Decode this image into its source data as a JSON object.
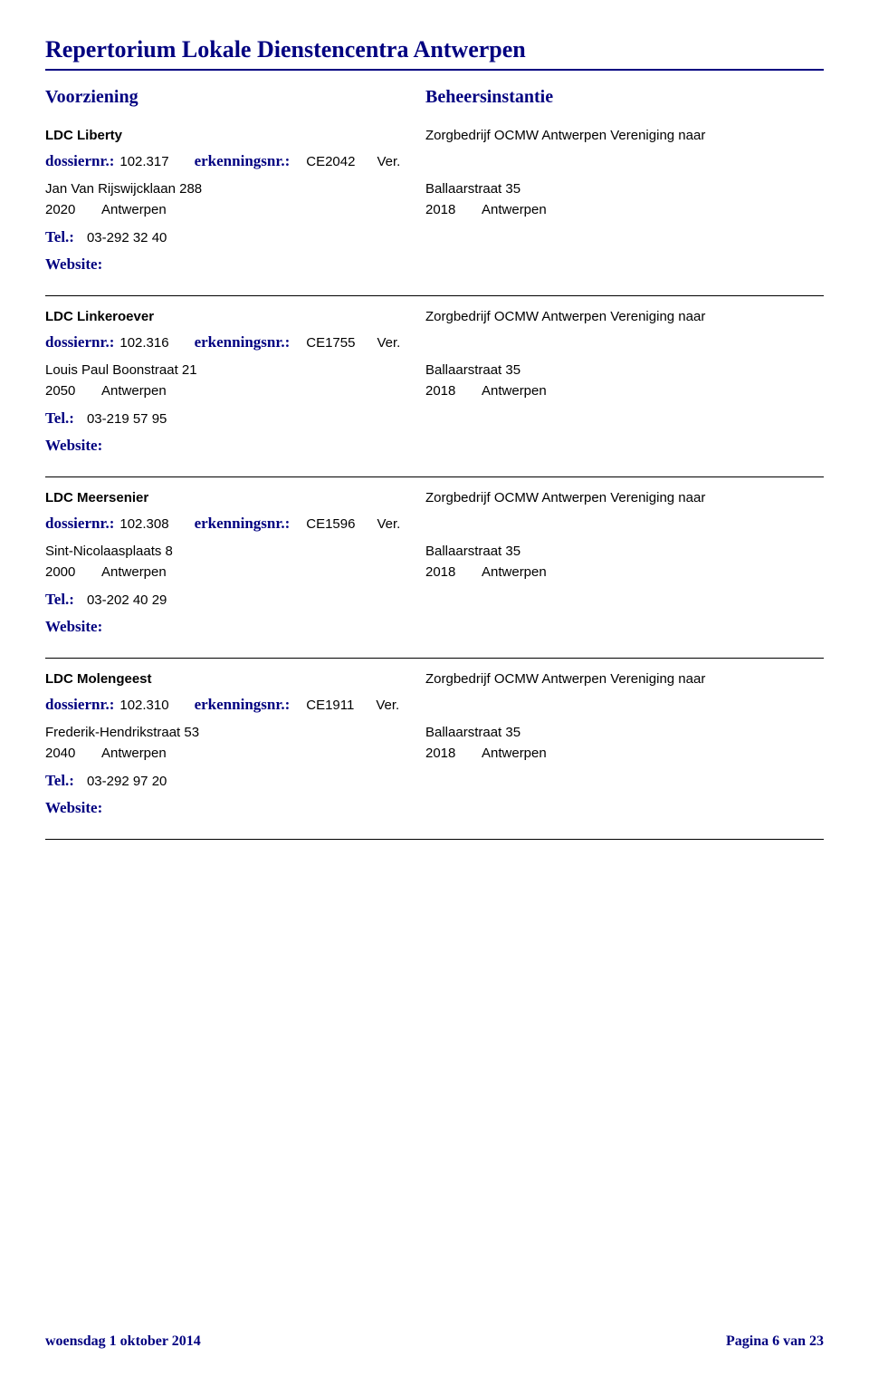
{
  "title": "Repertorium Lokale Dienstencentra Antwerpen",
  "headers": {
    "voorziening": "Voorziening",
    "beheersinstantie": "Beheersinstantie"
  },
  "labels": {
    "dossiernr": "dossiernr.:",
    "erkenningsnr": "erkenningsnr.:",
    "tel": "Tel.:",
    "website": "Website:",
    "ver": "Ver."
  },
  "entries": [
    {
      "name": "LDC Liberty",
      "beheer": "Zorgbedrijf OCMW Antwerpen Vereniging naar",
      "dossiernr": "102.317",
      "erkenningsnr": "CE2042",
      "street": "Jan Van Rijswijcklaan 288",
      "zip": "2020",
      "city": "Antwerpen",
      "tel": "03-292 32 40",
      "beheer_street": "Ballaarstraat 35",
      "beheer_zip": "2018",
      "beheer_city": "Antwerpen"
    },
    {
      "name": "LDC Linkeroever",
      "beheer": "Zorgbedrijf OCMW Antwerpen Vereniging naar",
      "dossiernr": "102.316",
      "erkenningsnr": "CE1755",
      "street": "Louis Paul Boonstraat 21",
      "zip": "2050",
      "city": "Antwerpen",
      "tel": "03-219 57 95",
      "beheer_street": "Ballaarstraat 35",
      "beheer_zip": "2018",
      "beheer_city": "Antwerpen"
    },
    {
      "name": "LDC Meersenier",
      "beheer": "Zorgbedrijf OCMW Antwerpen Vereniging naar",
      "dossiernr": "102.308",
      "erkenningsnr": "CE1596",
      "street": "Sint-Nicolaasplaats 8",
      "zip": "2000",
      "city": "Antwerpen",
      "tel": "03-202 40 29",
      "beheer_street": "Ballaarstraat 35",
      "beheer_zip": "2018",
      "beheer_city": "Antwerpen"
    },
    {
      "name": "LDC Molengeest",
      "beheer": "Zorgbedrijf OCMW Antwerpen Vereniging naar",
      "dossiernr": "102.310",
      "erkenningsnr": "CE1911",
      "street": "Frederik-Hendrikstraat 53",
      "zip": "2040",
      "city": "Antwerpen",
      "tel": "03-292 97 20",
      "beheer_street": "Ballaarstraat 35",
      "beheer_zip": "2018",
      "beheer_city": "Antwerpen"
    }
  ],
  "footer": {
    "date": "woensdag 1 oktober 2014",
    "page": "Pagina 6 van 23"
  },
  "colors": {
    "heading": "#000080",
    "text": "#000000",
    "bg": "#ffffff"
  }
}
